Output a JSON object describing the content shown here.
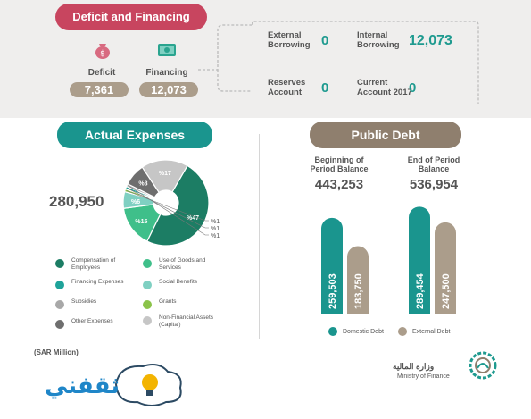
{
  "deficit_financing": {
    "title": "Deficit and Financing",
    "deficit_label": "Deficit",
    "deficit_value": "7,361",
    "financing_label": "Financing",
    "financing_value": "12,073",
    "external_borrowing_label": "External Borrowing",
    "external_borrowing_value": "0",
    "internal_borrowing_label": "Internal Borrowing",
    "internal_borrowing_value": "12,073",
    "reserves_account_label": "Reserves Account",
    "reserves_account_value": "0",
    "current_account_label": "Current Account 2017",
    "current_account_value": "0",
    "colors": {
      "title": "#c8455f",
      "value_pill": "#ab9d8b",
      "teal_value": "#1e9a8f"
    }
  },
  "actual_expenses": {
    "title": "Actual Expenses",
    "total": "280,950",
    "legend": [
      {
        "label": "Compensation of Employees",
        "color": "#1c7d64"
      },
      {
        "label": "Use of Goods and Services",
        "color": "#3fbf8a"
      },
      {
        "label": "Financing Expenses",
        "color": "#1fa39a"
      },
      {
        "label": "Social Benefits",
        "color": "#7fd0c2"
      },
      {
        "label": "Subsidies",
        "color": "#a8a8a8"
      },
      {
        "label": "Grants",
        "color": "#8bc34a"
      },
      {
        "label": "Other Expenses",
        "color": "#6e6e6e"
      },
      {
        "label": "Non-Financial Assets (Capital)",
        "color": "#c6c6c6"
      }
    ]
  },
  "public_debt": {
    "title": "Public Debt",
    "beginning_label": "Beginning of Period Balance",
    "beginning_value": "443,253",
    "end_label": "End of Period Balance",
    "end_value": "536,954",
    "legend_domestic": "Domestic Debt",
    "legend_external": "External Debt",
    "colors": {
      "domestic": "#1a958e",
      "external": "#ab9d8b"
    }
  },
  "footer": {
    "unit_note": "(SAR Million)",
    "watermark_text": "ثقفني",
    "ministry_arabic": "وزارة المالية",
    "ministry_english": "Ministry of Finance"
  },
  "chart_data": [
    {
      "type": "pie",
      "title": "Actual Expenses",
      "total": "280,950",
      "slices": [
        {
          "label": "Compensation of Employees",
          "text": "%47",
          "value": 47,
          "color": "#1c7d64"
        },
        {
          "label": "Use of Goods and Services",
          "text": "%15",
          "value": 15,
          "color": "#3fbf8a"
        },
        {
          "label": "Social Benefits",
          "text": "%6",
          "value": 6,
          "color": "#7fd0c2"
        },
        {
          "label": "Grants",
          "text": "%1",
          "value": 1,
          "color": "#8bc34a"
        },
        {
          "label": "Financing Expenses",
          "text": "%1",
          "value": 1,
          "color": "#1fa39a"
        },
        {
          "label": "Subsidies",
          "text": "%1",
          "value": 1,
          "color": "#a8a8a8"
        },
        {
          "label": "Other Expenses",
          "text": "%8",
          "value": 8,
          "color": "#6e6e6e"
        },
        {
          "label": "Non-Financial Assets (Capital)",
          "text": "%17",
          "value": 17,
          "color": "#c6c6c6"
        }
      ]
    },
    {
      "type": "bar",
      "title": "Public Debt",
      "categories": [
        "Beginning of Period Balance",
        "End of Period Balance"
      ],
      "series": [
        {
          "name": "Domestic Debt",
          "values": [
            259503,
            289454
          ],
          "labels": [
            "259,503",
            "289,454"
          ],
          "color": "#1a958e"
        },
        {
          "name": "External Debt",
          "values": [
            183750,
            247500
          ],
          "labels": [
            "183,750",
            "247,500"
          ],
          "color": "#ab9d8b"
        }
      ],
      "ylim": [
        0,
        300000
      ]
    }
  ]
}
